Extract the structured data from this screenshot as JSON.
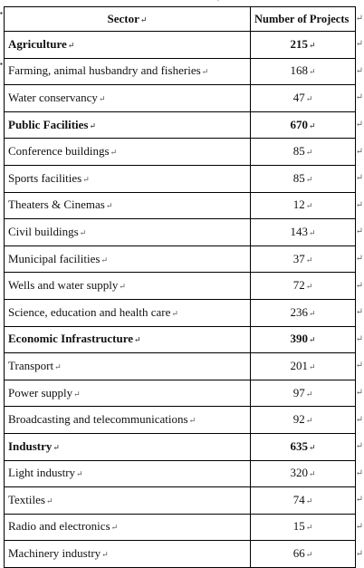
{
  "table": {
    "headers": {
      "sector": "Sector",
      "count": "Number of Projects"
    },
    "groups": [
      {
        "name": "Agriculture",
        "total": "215",
        "items": [
          {
            "name": "Farming, animal husbandry and fisheries",
            "count": "168"
          },
          {
            "name": "Water conservancy",
            "count": "47"
          }
        ]
      },
      {
        "name": "Public Facilities",
        "total": "670",
        "items": [
          {
            "name": "Conference buildings",
            "count": "85"
          },
          {
            "name": "Sports facilities",
            "count": "85"
          },
          {
            "name": "Theaters & Cinemas",
            "count": "12"
          },
          {
            "name": "Civil buildings",
            "count": "143"
          },
          {
            "name": "Municipal facilities",
            "count": "37"
          },
          {
            "name": "Wells and water supply",
            "count": "72"
          },
          {
            "name": "Science, education and health care",
            "count": "236"
          }
        ]
      },
      {
        "name": "Economic Infrastructure",
        "total": "390",
        "items": [
          {
            "name": "Transport",
            "count": "201"
          },
          {
            "name": "Power supply",
            "count": "97"
          },
          {
            "name": "Broadcasting and telecommunications",
            "count": "92"
          }
        ]
      },
      {
        "name": "Industry",
        "total": "635",
        "items": [
          {
            "name": "Light industry",
            "count": "320"
          },
          {
            "name": "Textiles",
            "count": "74"
          },
          {
            "name": "Radio and electronics",
            "count": "15"
          },
          {
            "name": "Machinery industry",
            "count": "66"
          }
        ]
      }
    ]
  },
  "marks": {
    "paragraph": "↵"
  }
}
